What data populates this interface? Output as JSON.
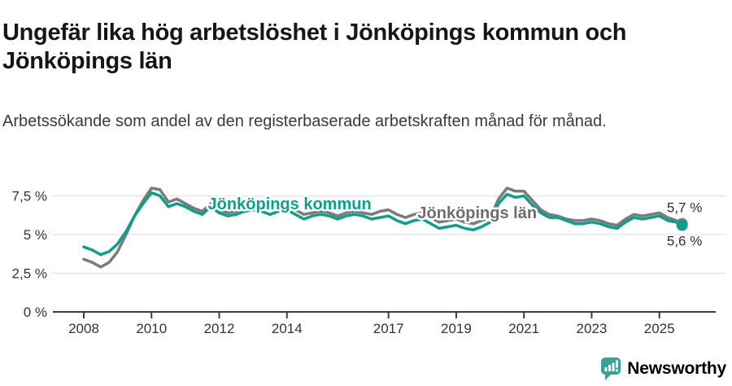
{
  "title": "Ungefär lika hög arbetslöshet i Jönköpings kommun och Jönköpings län",
  "subtitle": "Arbetssökande som andel av den registerbaserade arbetskraften månad för månad.",
  "brand": {
    "name": "Newsworthy",
    "color": "#3aa294"
  },
  "colors": {
    "kommun_line": "#0f9e8c",
    "lan_line": "#7b7b7b",
    "axis": "#3c3c3c",
    "grid": "#dcdcdc",
    "tick_text": "#333333"
  },
  "chart_data": {
    "type": "line",
    "title": "Ungefär lika hög arbetslöshet i Jönköpings kommun och Jönköpings län",
    "subtitle": "Arbetssökande som andel av den registerbaserade arbetskraften månad för månad.",
    "ylabel": "",
    "xlabel": "",
    "y_unit": "%",
    "ylim": [
      0,
      8.6
    ],
    "xlim": [
      2007.1,
      2026.0
    ],
    "grid": "horizontal",
    "legend": "inline-labels",
    "x_axis": {
      "start": 2008,
      "ticks": [
        {
          "value": 2008,
          "label": "2008"
        },
        {
          "value": 2010,
          "label": "2010"
        },
        {
          "value": 2012,
          "label": "2012"
        },
        {
          "value": 2014,
          "label": "2014"
        },
        {
          "value": 2017,
          "label": "2017"
        },
        {
          "value": 2019,
          "label": "2019"
        },
        {
          "value": 2021,
          "label": "2021"
        },
        {
          "value": 2023,
          "label": "2023"
        },
        {
          "value": 2025,
          "label": "2025"
        }
      ]
    },
    "y_axis": {
      "ticks": [
        {
          "value": 0,
          "label": "0 %"
        },
        {
          "value": 2.5,
          "label": "2,5 %"
        },
        {
          "value": 5,
          "label": "5 %"
        },
        {
          "value": 7.5,
          "label": "7,5 %"
        }
      ]
    },
    "x": [
      2008,
      2008.25,
      2008.5,
      2008.75,
      2009,
      2009.25,
      2009.5,
      2009.75,
      2010,
      2010.25,
      2010.5,
      2010.75,
      2011,
      2011.25,
      2011.5,
      2011.75,
      2012,
      2012.25,
      2012.5,
      2012.75,
      2013,
      2013.25,
      2013.5,
      2013.75,
      2014,
      2014.25,
      2014.5,
      2014.75,
      2015,
      2015.25,
      2015.5,
      2015.75,
      2016,
      2016.25,
      2016.5,
      2016.75,
      2017,
      2017.25,
      2017.5,
      2017.75,
      2018,
      2018.25,
      2018.5,
      2018.75,
      2019,
      2019.25,
      2019.5,
      2019.75,
      2020,
      2020.25,
      2020.5,
      2020.75,
      2021,
      2021.25,
      2021.5,
      2021.75,
      2022,
      2022.25,
      2022.5,
      2022.75,
      2023,
      2023.25,
      2023.5,
      2023.75,
      2024,
      2024.25,
      2024.5,
      2024.75,
      2025,
      2025.25,
      2025.5,
      2025.67
    ],
    "series": [
      {
        "id": "lan",
        "name": "Jönköpings län",
        "color": "#7b7b7b",
        "label_color": "#6d6d6d",
        "label_pos": {
          "x": 2019.62,
          "y": 6.05
        },
        "end_label": "5,7 %",
        "end_value": 5.7,
        "end_label_position": "above",
        "values": [
          3.4,
          3.2,
          2.9,
          3.2,
          3.9,
          5.0,
          6.2,
          7.2,
          8.0,
          7.9,
          7.1,
          7.3,
          7.0,
          6.7,
          6.5,
          7.0,
          6.6,
          6.4,
          6.5,
          6.7,
          6.9,
          7.0,
          6.7,
          6.8,
          6.9,
          6.6,
          6.3,
          6.4,
          6.5,
          6.4,
          6.2,
          6.4,
          6.5,
          6.4,
          6.3,
          6.5,
          6.6,
          6.3,
          6.1,
          6.3,
          6.4,
          6.1,
          5.8,
          5.9,
          6.0,
          5.8,
          5.7,
          5.9,
          6.1,
          7.3,
          8.0,
          7.8,
          7.8,
          7.2,
          6.6,
          6.3,
          6.2,
          6.0,
          5.9,
          5.9,
          6.0,
          5.9,
          5.7,
          5.6,
          6.0,
          6.3,
          6.2,
          6.3,
          6.4,
          6.1,
          5.9,
          5.7
        ]
      },
      {
        "id": "kommun",
        "name": "Jönköpings kommun",
        "color": "#0f9e8c",
        "label_color": "#0f9e8c",
        "label_pos": {
          "x": 2014.08,
          "y": 6.63
        },
        "end_label": "5,6 %",
        "end_value": 5.6,
        "end_label_position": "below",
        "values": [
          4.2,
          4.0,
          3.7,
          3.9,
          4.4,
          5.2,
          6.2,
          7.0,
          7.7,
          7.5,
          6.8,
          7.0,
          6.8,
          6.5,
          6.3,
          6.8,
          6.4,
          6.2,
          6.3,
          6.5,
          6.6,
          6.5,
          6.3,
          6.5,
          6.6,
          6.3,
          6.0,
          6.2,
          6.3,
          6.2,
          6.0,
          6.2,
          6.3,
          6.2,
          6.0,
          6.1,
          6.2,
          5.9,
          5.7,
          5.9,
          6.0,
          5.7,
          5.4,
          5.5,
          5.6,
          5.4,
          5.3,
          5.5,
          5.8,
          7.0,
          7.6,
          7.4,
          7.5,
          6.9,
          6.4,
          6.1,
          6.1,
          5.9,
          5.7,
          5.7,
          5.8,
          5.7,
          5.5,
          5.4,
          5.8,
          6.1,
          6.0,
          6.1,
          6.2,
          5.9,
          5.8,
          5.6
        ]
      }
    ]
  }
}
